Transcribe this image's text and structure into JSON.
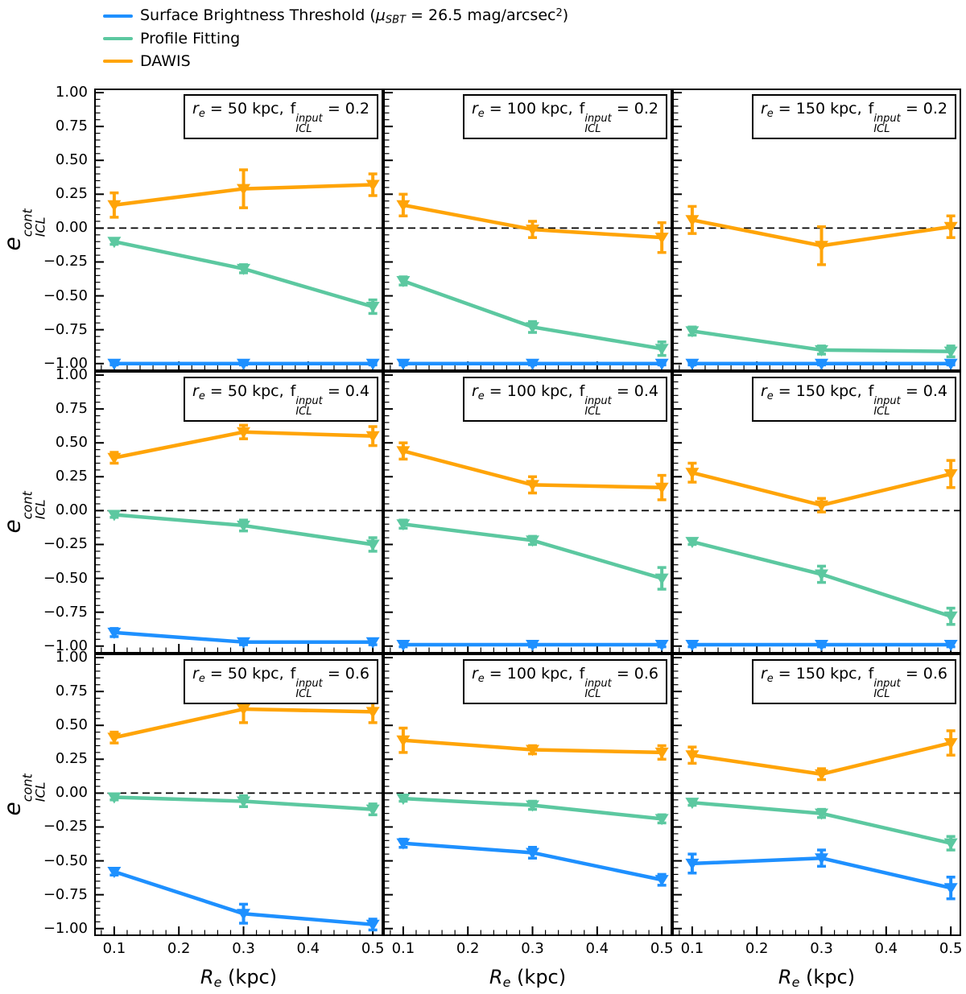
{
  "legend": {
    "items": [
      {
        "id": "sbt",
        "color": "#1E90FF",
        "pre": "Surface Brightness Threshold (",
        "mu": "μ",
        "sub": "SBT",
        "mid": " = 26.5 mag/arcsec",
        "sup": "2",
        "post": ")"
      },
      {
        "id": "profile-fitting",
        "color": "#5CC8A0",
        "label": "Profile Fitting"
      },
      {
        "id": "dawis",
        "color": "#FFA408",
        "label": "DAWIS"
      }
    ]
  },
  "axes": {
    "y_label": {
      "sym": "e",
      "sup": "cont",
      "sub": "ICL"
    },
    "x_label": {
      "sym": "R",
      "sub": "e",
      "unit": " (kpc)"
    },
    "y_tick_labels": [
      "1.00",
      "0.75",
      "0.50",
      "0.25",
      "0.00",
      "−0.25",
      "−0.50",
      "−0.75",
      "−1.00"
    ],
    "x_tick_labels": [
      "0.1",
      "0.2",
      "0.3",
      "0.4",
      "0.5"
    ]
  },
  "title_parts": {
    "r_sym": "r",
    "r_sub": "e",
    "eq": " = ",
    "comma": ",",
    "f_sym": "f",
    "f_sup": "input",
    "f_sub": "ICL"
  },
  "chart_data": {
    "type": "line",
    "layout": "3x3 grid, shared axes, rows = f_ICL input (0.2, 0.4, 0.6), cols = r_e (50, 100, 150 kpc)",
    "x": [
      0.1,
      0.3,
      0.5
    ],
    "xlim": [
      0.069,
      0.516
    ],
    "ylim": [
      -1.055,
      1.03
    ],
    "x_ticks": [
      0.1,
      0.2,
      0.3,
      0.4,
      0.5
    ],
    "y_ticks": [
      1.0,
      0.75,
      0.5,
      0.25,
      0.0,
      -0.25,
      -0.5,
      -0.75,
      -1.0
    ],
    "x_minor_step": 0.02,
    "y_minor_step": 0.05,
    "zero_line_y": 0.0,
    "grid": false,
    "marker": "triangle-down",
    "legend_position": "above figure, upper left",
    "legend_entries": [
      "Surface Brightness Threshold (μSBT = 26.5 mag/arcsec²)",
      "Profile Fitting",
      "DAWIS"
    ],
    "series_order": [
      "sbt",
      "pf",
      "dawis"
    ],
    "colors": {
      "sbt": "#1E90FF",
      "pf": "#5CC8A0",
      "dawis": "#FFA408"
    },
    "panels": [
      {
        "re_label": "50 kpc",
        "f_label": "0.2",
        "sbt": {
          "y": [
            -1.0,
            -1.0,
            -1.0
          ],
          "yerr": [
            0.01,
            0.01,
            0.01
          ]
        },
        "pf": {
          "y": [
            -0.1,
            -0.3,
            -0.58
          ],
          "yerr": [
            0.02,
            0.03,
            0.05
          ]
        },
        "dawis": {
          "y": [
            0.17,
            0.29,
            0.32
          ],
          "yerr": [
            0.09,
            0.14,
            0.08
          ]
        }
      },
      {
        "re_label": "100 kpc",
        "f_label": "0.2",
        "sbt": {
          "y": [
            -1.0,
            -1.0,
            -1.0
          ],
          "yerr": [
            0.01,
            0.01,
            0.01
          ]
        },
        "pf": {
          "y": [
            -0.39,
            -0.73,
            -0.89
          ],
          "yerr": [
            0.03,
            0.04,
            0.05
          ]
        },
        "dawis": {
          "y": [
            0.17,
            -0.01,
            -0.07
          ],
          "yerr": [
            0.08,
            0.06,
            0.11
          ]
        }
      },
      {
        "re_label": "150 kpc",
        "f_label": "0.2",
        "sbt": {
          "y": [
            -1.0,
            -1.0,
            -1.0
          ],
          "yerr": [
            0.01,
            0.01,
            0.01
          ]
        },
        "pf": {
          "y": [
            -0.76,
            -0.9,
            -0.91
          ],
          "yerr": [
            0.03,
            0.03,
            0.04
          ]
        },
        "dawis": {
          "y": [
            0.06,
            -0.13,
            0.01
          ],
          "yerr": [
            0.1,
            0.14,
            0.08
          ]
        }
      },
      {
        "re_label": "50 kpc",
        "f_label": "0.4",
        "sbt": {
          "y": [
            -0.9,
            -0.97,
            -0.97
          ],
          "yerr": [
            0.03,
            0.02,
            0.02
          ]
        },
        "pf": {
          "y": [
            -0.03,
            -0.11,
            -0.25
          ],
          "yerr": [
            0.02,
            0.04,
            0.05
          ]
        },
        "dawis": {
          "y": [
            0.39,
            0.58,
            0.55
          ],
          "yerr": [
            0.04,
            0.05,
            0.07
          ]
        }
      },
      {
        "re_label": "100 kpc",
        "f_label": "0.4",
        "sbt": {
          "y": [
            -0.99,
            -0.99,
            -0.99
          ],
          "yerr": [
            0.015,
            0.015,
            0.015
          ]
        },
        "pf": {
          "y": [
            -0.1,
            -0.22,
            -0.5
          ],
          "yerr": [
            0.03,
            0.03,
            0.08
          ]
        },
        "dawis": {
          "y": [
            0.44,
            0.19,
            0.17
          ],
          "yerr": [
            0.06,
            0.06,
            0.09
          ]
        }
      },
      {
        "re_label": "150 kpc",
        "f_label": "0.4",
        "sbt": {
          "y": [
            -0.99,
            -0.99,
            -0.99
          ],
          "yerr": [
            0.015,
            0.015,
            0.015
          ]
        },
        "pf": {
          "y": [
            -0.23,
            -0.47,
            -0.78
          ],
          "yerr": [
            0.02,
            0.06,
            0.06
          ]
        },
        "dawis": {
          "y": [
            0.28,
            0.04,
            0.27
          ],
          "yerr": [
            0.07,
            0.05,
            0.1
          ]
        }
      },
      {
        "re_label": "50 kpc",
        "f_label": "0.6",
        "sbt": {
          "y": [
            -0.58,
            -0.89,
            -0.97
          ],
          "yerr": [
            0.025,
            0.07,
            0.04
          ]
        },
        "pf": {
          "y": [
            -0.03,
            -0.06,
            -0.12
          ],
          "yerr": [
            0.02,
            0.04,
            0.04
          ]
        },
        "dawis": {
          "y": [
            0.41,
            0.62,
            0.6
          ],
          "yerr": [
            0.04,
            0.1,
            0.08
          ]
        }
      },
      {
        "re_label": "100 kpc",
        "f_label": "0.6",
        "sbt": {
          "y": [
            -0.37,
            -0.44,
            -0.64
          ],
          "yerr": [
            0.03,
            0.04,
            0.04
          ]
        },
        "pf": {
          "y": [
            -0.04,
            -0.09,
            -0.19
          ],
          "yerr": [
            0.02,
            0.03,
            0.03
          ]
        },
        "dawis": {
          "y": [
            0.39,
            0.32,
            0.3
          ],
          "yerr": [
            0.09,
            0.03,
            0.05
          ]
        }
      },
      {
        "re_label": "150 kpc",
        "f_label": "0.6",
        "sbt": {
          "y": [
            -0.52,
            -0.48,
            -0.7
          ],
          "yerr": [
            0.07,
            0.06,
            0.08
          ]
        },
        "pf": {
          "y": [
            -0.07,
            -0.15,
            -0.37
          ],
          "yerr": [
            0.02,
            0.03,
            0.05
          ]
        },
        "dawis": {
          "y": [
            0.28,
            0.14,
            0.37
          ],
          "yerr": [
            0.06,
            0.04,
            0.09
          ]
        }
      }
    ]
  }
}
